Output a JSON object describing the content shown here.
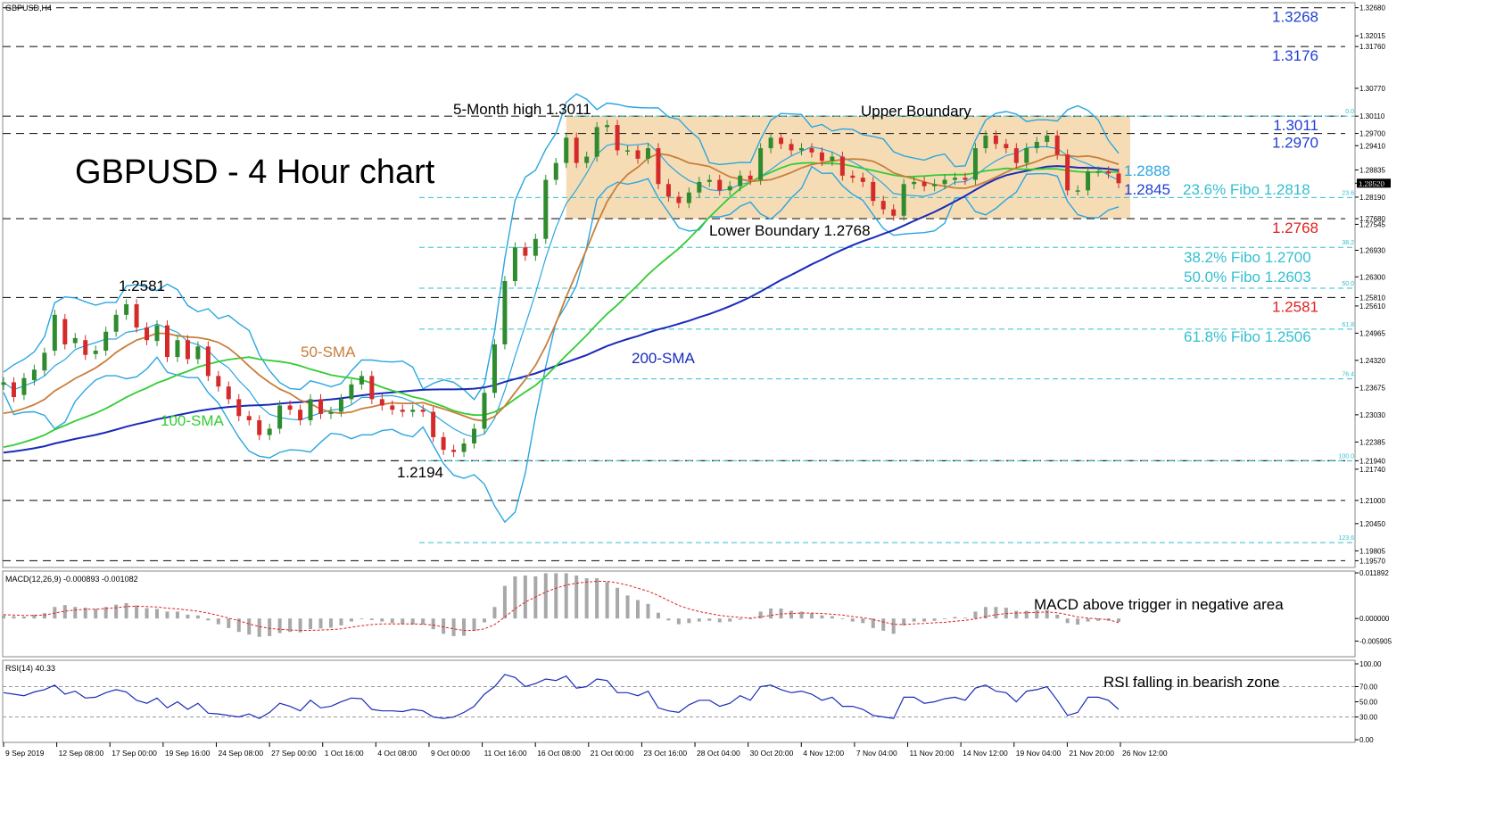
{
  "chart_title": "GBPUSD,H4",
  "headline": "GBPUSD - 4 Hour chart",
  "colors": {
    "bull": "#2e8b2e",
    "bear": "#d42a2a",
    "bollinger": "#2aa6e0",
    "sma50": "#c87f3c",
    "sma100": "#33cc33",
    "sma200": "#1a2bb8",
    "range_fill": "#f5d6a8",
    "fibo": "#33bfcf",
    "level_blue": "#1f3fd6",
    "level_red": "#e02020",
    "macd_hist": "#a8a8a8",
    "macd_signal": "#e02020",
    "rsi_line": "#1a2bb8"
  },
  "chart_data": {
    "type": "line",
    "instrument": "GBPUSD",
    "timeframe": "H4",
    "y_axis_ticks": [
      "1.32680",
      "1.32015",
      "1.31760",
      "1.30770",
      "1.30110",
      "1.29700",
      "1.29410",
      "1.28835",
      "1.28520",
      "1.28190",
      "1.27680",
      "1.27545",
      "1.26930",
      "1.26300",
      "1.25810",
      "1.25610",
      "1.24965",
      "1.24320",
      "1.23675",
      "1.23030",
      "1.22385",
      "1.21940",
      "1.21740",
      "1.21000",
      "1.20450",
      "1.19805",
      "1.19570"
    ],
    "x_axis_ticks": [
      "9 Sep 2019",
      "12 Sep 08:00",
      "17 Sep 00:00",
      "19 Sep 16:00",
      "24 Sep 08:00",
      "27 Sep 00:00",
      "1 Oct 16:00",
      "4 Oct 08:00",
      "9 Oct 00:00",
      "11 Oct 16:00",
      "16 Oct 08:00",
      "21 Oct 00:00",
      "23 Oct 16:00",
      "28 Oct 04:00",
      "30 Oct 20:00",
      "4 Nov 12:00",
      "7 Nov 04:00",
      "11 Nov 20:00",
      "14 Nov 12:00",
      "19 Nov 04:00",
      "21 Nov 20:00",
      "26 Nov 12:00"
    ],
    "ylim": [
      1.1941,
      1.328
    ],
    "price_levels": [
      {
        "label": "1.3268",
        "value": 1.3268,
        "color": "blue"
      },
      {
        "label": "1.3176",
        "value": 1.3176,
        "color": "blue"
      },
      {
        "label": "1.3011",
        "value": 1.3011,
        "color": "blue"
      },
      {
        "label": "1.2970",
        "value": 1.297,
        "color": "blue"
      },
      {
        "label": "1.2768",
        "value": 1.2768,
        "color": "red"
      },
      {
        "label": "1.2581",
        "value": 1.2581,
        "color": "red"
      },
      {
        "label": "1.2194",
        "value": 1.2194,
        "color": "none"
      },
      {
        "label": "1.2100",
        "value": 1.21,
        "color": "none"
      },
      {
        "label": "1.1957",
        "value": 1.1957,
        "color": "none"
      }
    ],
    "fibo_levels": [
      {
        "ratio": "0.0",
        "value": 1.3011
      },
      {
        "ratio": "23.6",
        "value": 1.2818
      },
      {
        "ratio": "38.2",
        "value": 1.27
      },
      {
        "ratio": "50.0",
        "value": 1.2603
      },
      {
        "ratio": "61.8",
        "value": 1.2506
      },
      {
        "ratio": "76.4",
        "value": 1.2388
      },
      {
        "ratio": "100.0",
        "value": 1.2194
      },
      {
        "ratio": "123.6",
        "value": 1.2
      }
    ],
    "current_price": "1.28520",
    "sma50_last": 1.2888,
    "sma200_last": 1.2845,
    "range_box": {
      "top": 1.3011,
      "bottom": 1.2768
    },
    "close": [
      1.238,
      1.2345,
      1.239,
      1.241,
      1.245,
      1.254,
      1.247,
      1.2485,
      1.2445,
      1.2455,
      1.25,
      1.254,
      1.2565,
      1.251,
      1.248,
      1.2515,
      1.244,
      1.248,
      1.2435,
      1.2465,
      1.2395,
      1.237,
      1.234,
      1.23,
      1.229,
      1.2255,
      1.227,
      1.2325,
      1.2315,
      1.229,
      1.234,
      1.2305,
      1.231,
      1.234,
      1.2375,
      1.2395,
      1.234,
      1.2325,
      1.2315,
      1.231,
      1.2315,
      1.231,
      1.225,
      1.222,
      1.2215,
      1.2235,
      1.227,
      1.2355,
      1.247,
      1.262,
      1.27,
      1.268,
      1.272,
      1.286,
      1.29,
      1.296,
      1.29,
      1.2915,
      1.2985,
      1.299,
      1.293,
      1.293,
      1.291,
      1.2935,
      1.285,
      1.282,
      1.2805,
      1.283,
      1.2855,
      1.286,
      1.2835,
      1.2845,
      1.287,
      1.286,
      1.2935,
      1.296,
      1.2945,
      1.293,
      1.2935,
      1.2925,
      1.2905,
      1.2915,
      1.287,
      1.2865,
      1.2855,
      1.281,
      1.279,
      1.2775,
      1.285,
      1.2855,
      1.2845,
      1.285,
      1.286,
      1.2865,
      1.286,
      1.2935,
      1.2965,
      1.2945,
      1.2935,
      1.29,
      1.2935,
      1.295,
      1.2965,
      1.292,
      1.2835,
      1.2835,
      1.288,
      1.288,
      1.2875,
      1.2852
    ],
    "open": [
      1.2374,
      1.238,
      1.235,
      1.2385,
      1.2408,
      1.2455,
      1.253,
      1.2473,
      1.248,
      1.2447,
      1.2455,
      1.25,
      1.254,
      1.2565,
      1.251,
      1.2478,
      1.2515,
      1.244,
      1.248,
      1.2435,
      1.2465,
      1.2395,
      1.237,
      1.234,
      1.23,
      1.229,
      1.2255,
      1.227,
      1.2325,
      1.2315,
      1.229,
      1.234,
      1.2305,
      1.231,
      1.234,
      1.2375,
      1.2395,
      1.234,
      1.2325,
      1.2315,
      1.231,
      1.2315,
      1.231,
      1.225,
      1.222,
      1.2215,
      1.2235,
      1.227,
      1.2355,
      1.247,
      1.262,
      1.27,
      1.268,
      1.272,
      1.286,
      1.29,
      1.296,
      1.29,
      1.2915,
      1.2985,
      1.299,
      1.293,
      1.293,
      1.291,
      1.2935,
      1.285,
      1.282,
      1.2805,
      1.283,
      1.2855,
      1.286,
      1.2835,
      1.2845,
      1.287,
      1.286,
      1.2935,
      1.296,
      1.2945,
      1.293,
      1.2935,
      1.2925,
      1.2905,
      1.2915,
      1.287,
      1.2865,
      1.2855,
      1.281,
      1.279,
      1.2775,
      1.285,
      1.2855,
      1.2845,
      1.285,
      1.286,
      1.2865,
      1.286,
      1.2935,
      1.2965,
      1.2945,
      1.2935,
      1.29,
      1.2935,
      1.295,
      1.2965,
      1.292,
      1.2835,
      1.2835,
      1.288,
      1.288,
      1.2875
    ]
  },
  "annotations": {
    "headline": "GBPUSD - 4 Hour chart",
    "five_month_high": "5-Month high 1.3011",
    "upper_boundary": "Upper Boundary",
    "lower_boundary": "Lower Boundary 1.2768",
    "low_1_2194": "1.2194",
    "high_1_2581": "1.2581",
    "sma50": "50-SMA",
    "sma100": "100-SMA",
    "sma200": "200-SMA",
    "sma50_value": "1.2888",
    "sma200_value": "1.2845",
    "fibo_236": "23.6% Fibo 1.2818",
    "fibo_382": "38.2% Fibo 1.2700",
    "fibo_500": "50.0% Fibo 1.2603",
    "fibo_618": "61.8% Fibo 1.2506",
    "macd_note": "MACD above trigger in negative area",
    "rsi_note": "RSI falling in bearish zone"
  },
  "macd": {
    "title": "MACD(12,26,9) -0.000893 -0.001082",
    "ticks": [
      "0.011892",
      "0.000000",
      "-0.005905"
    ],
    "ylim": [
      -0.0095,
      0.0119
    ],
    "hist": [
      0.0008,
      0.0006,
      0.0005,
      0.001,
      0.0014,
      0.003,
      0.0035,
      0.003,
      0.0028,
      0.0025,
      0.003,
      0.0036,
      0.004,
      0.0034,
      0.0027,
      0.0025,
      0.0018,
      0.0018,
      0.001,
      0.0008,
      -0.0005,
      -0.0015,
      -0.0025,
      -0.0035,
      -0.0042,
      -0.0048,
      -0.0046,
      -0.0038,
      -0.0035,
      -0.0036,
      -0.0028,
      -0.0026,
      -0.0024,
      -0.0018,
      -0.0008,
      -0.0002,
      -0.0004,
      -0.0008,
      -0.0012,
      -0.0015,
      -0.0016,
      -0.0016,
      -0.0028,
      -0.004,
      -0.0046,
      -0.0045,
      -0.0032,
      -0.001,
      0.003,
      0.0085,
      0.011,
      0.0112,
      0.011,
      0.0118,
      0.0118,
      0.0118,
      0.0112,
      0.0105,
      0.0105,
      0.0095,
      0.008,
      0.006,
      0.0048,
      0.0038,
      0.0015,
      -0.0005,
      -0.0015,
      -0.0012,
      -0.0008,
      -0.0006,
      -0.001,
      -0.0008,
      -0.0003,
      -0.0002,
      0.0018,
      0.0026,
      0.0026,
      0.002,
      0.0018,
      0.0014,
      0.0008,
      0.0006,
      0.0,
      -0.0008,
      -0.0012,
      -0.0025,
      -0.0032,
      -0.004,
      -0.0018,
      -0.0008,
      -0.0008,
      -0.0006,
      -0.0002,
      0.0004,
      0.0002,
      0.0018,
      0.003,
      0.003,
      0.0028,
      0.002,
      0.002,
      0.0022,
      0.0022,
      0.001,
      -0.0012,
      -0.0016,
      -0.0008,
      -0.0006,
      -0.0006,
      -0.0009
    ],
    "signal": [
      0.001,
      0.0009,
      0.0008,
      0.0008,
      0.0009,
      0.0014,
      0.0019,
      0.0022,
      0.0024,
      0.0024,
      0.0026,
      0.0028,
      0.0031,
      0.0032,
      0.0031,
      0.003,
      0.0027,
      0.0025,
      0.0022,
      0.0019,
      0.0014,
      0.0008,
      0.0001,
      -0.0006,
      -0.0014,
      -0.0021,
      -0.0026,
      -0.0028,
      -0.003,
      -0.0031,
      -0.0031,
      -0.003,
      -0.0029,
      -0.0027,
      -0.0023,
      -0.0019,
      -0.0016,
      -0.0014,
      -0.0014,
      -0.0014,
      -0.0014,
      -0.0015,
      -0.0017,
      -0.0022,
      -0.0027,
      -0.0031,
      -0.0031,
      -0.0027,
      -0.0016,
      0.0004,
      0.0025,
      0.0043,
      0.0056,
      0.0069,
      0.0079,
      0.0087,
      0.0092,
      0.0095,
      0.0097,
      0.0097,
      0.0093,
      0.0087,
      0.0079,
      0.0071,
      0.006,
      0.0047,
      0.0034,
      0.0025,
      0.0018,
      0.0013,
      0.0008,
      0.0005,
      0.0003,
      0.0001,
      0.0004,
      0.0008,
      0.0012,
      0.0013,
      0.0014,
      0.0014,
      0.0013,
      0.0011,
      0.0009,
      0.0005,
      0.0002,
      -0.0003,
      -0.0009,
      -0.0015,
      -0.0016,
      -0.0014,
      -0.0013,
      -0.0011,
      -0.001,
      -0.0007,
      -0.0005,
      -0.0001,
      0.0005,
      0.001,
      0.0013,
      0.0014,
      0.0015,
      0.0016,
      0.0017,
      0.0015,
      0.001,
      0.0004,
      0.0001,
      -0.0001,
      -0.0003,
      -0.0011
    ]
  },
  "rsi": {
    "title": "RSI(14) 40.33",
    "ticks": [
      "100.00",
      "70.00",
      "50.00",
      "30.00",
      "0.00"
    ],
    "ylim": [
      0,
      100
    ],
    "values": [
      62,
      60,
      58,
      63,
      66,
      72,
      60,
      64,
      55,
      56,
      62,
      66,
      63,
      52,
      48,
      55,
      42,
      50,
      40,
      48,
      35,
      34,
      32,
      30,
      34,
      28,
      36,
      48,
      44,
      38,
      52,
      42,
      44,
      50,
      55,
      54,
      40,
      38,
      38,
      37,
      40,
      38,
      30,
      28,
      30,
      36,
      44,
      60,
      70,
      86,
      82,
      70,
      74,
      80,
      78,
      84,
      68,
      70,
      80,
      78,
      62,
      62,
      58,
      64,
      42,
      38,
      36,
      46,
      52,
      52,
      44,
      48,
      58,
      52,
      70,
      72,
      66,
      62,
      64,
      60,
      52,
      56,
      44,
      44,
      40,
      32,
      30,
      28,
      56,
      56,
      48,
      50,
      54,
      56,
      52,
      68,
      72,
      64,
      62,
      50,
      64,
      66,
      70,
      52,
      32,
      36,
      56,
      56,
      52,
      40
    ]
  }
}
